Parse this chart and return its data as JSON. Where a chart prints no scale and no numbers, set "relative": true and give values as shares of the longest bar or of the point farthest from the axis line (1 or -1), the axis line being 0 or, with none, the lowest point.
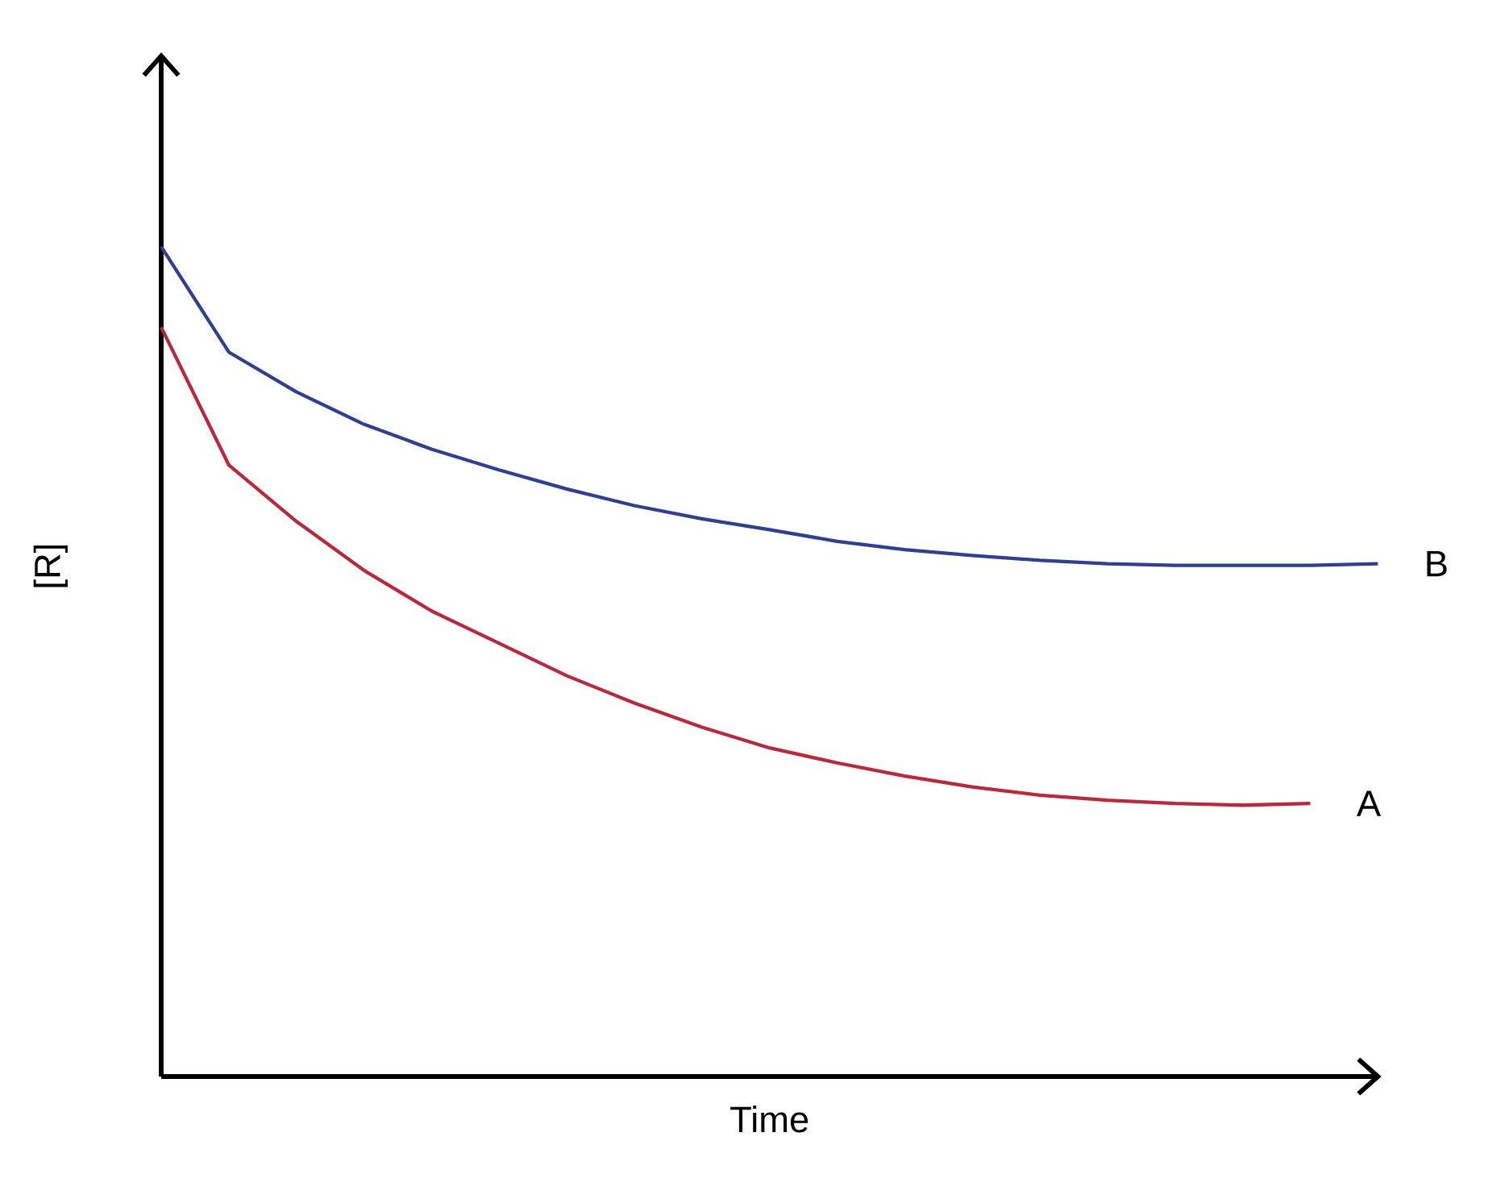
{
  "chart_data": {
    "type": "line",
    "relative": true,
    "xlabel": "Time",
    "ylabel": "[R]",
    "marker": "none",
    "line_style": "solid",
    "categories": [
      null,
      null,
      null,
      null,
      null,
      null,
      null,
      null,
      null,
      null,
      null,
      null,
      null,
      null,
      null,
      null,
      null,
      null,
      null
    ],
    "series": [
      {
        "name": "B",
        "color": "#2e3f95",
        "values": [
          1.0,
          0.873,
          0.825,
          0.786,
          0.756,
          0.731,
          0.708,
          0.688,
          0.672,
          0.659,
          0.645,
          0.635,
          0.628,
          0.622,
          0.618,
          0.616,
          0.616,
          0.616,
          0.618
        ]
      },
      {
        "name": "A",
        "color": "#c0263a",
        "values": [
          0.903,
          0.737,
          0.669,
          0.61,
          0.561,
          0.522,
          0.483,
          0.45,
          0.421,
          0.396,
          0.378,
          0.362,
          0.349,
          0.339,
          0.333,
          0.329,
          0.327,
          0.329,
          null
        ]
      }
    ]
  }
}
